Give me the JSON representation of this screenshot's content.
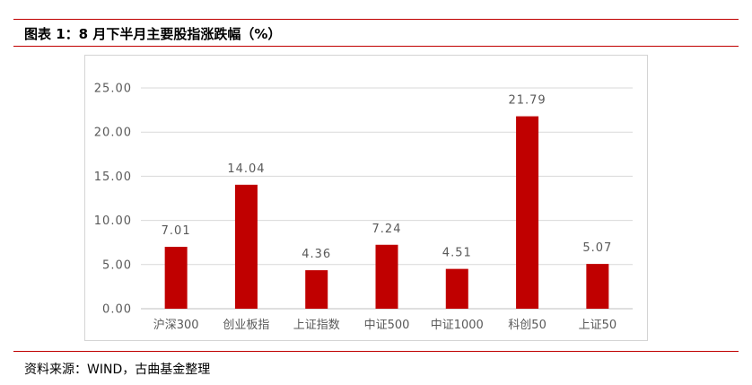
{
  "header": {
    "title": "图表 1：8 月下半月主要股指涨跌幅（%）"
  },
  "footer": {
    "source": "资料来源：WIND，古曲基金整理"
  },
  "colors": {
    "bar": "#c00000",
    "rule": "#c00000",
    "grid": "#d9d9d9",
    "text": "#595959"
  },
  "chart_data": {
    "type": "bar",
    "title": "",
    "xlabel": "",
    "ylabel": "",
    "categories": [
      "沪深300",
      "创业板指",
      "上证指数",
      "中证500",
      "中证1000",
      "科创50",
      "上证50"
    ],
    "values": [
      7.01,
      14.04,
      4.36,
      7.24,
      4.51,
      21.79,
      5.07
    ],
    "value_labels": [
      "7.01",
      "14.04",
      "4.36",
      "7.24",
      "4.51",
      "21.79",
      "5.07"
    ],
    "yticks": [
      0,
      5,
      10,
      15,
      20,
      25
    ],
    "ytick_labels": [
      "0.00",
      "5.00",
      "10.00",
      "15.00",
      "20.00",
      "25.00"
    ],
    "ylim": [
      0,
      25
    ],
    "grid": true,
    "legend": "none"
  }
}
